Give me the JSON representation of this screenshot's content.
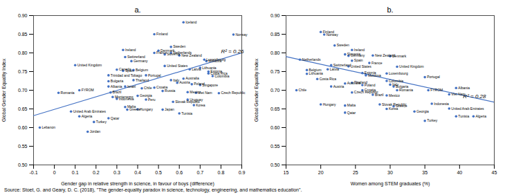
{
  "chart_data": [
    {
      "type": "scatter",
      "title": "a.",
      "xlabel": "Gender gap in relative strength in science, in favour of boys (difference)",
      "ylabel": "Global Gender Equality Index",
      "xlim": [
        -0.1,
        0.9
      ],
      "ylim": [
        0.5,
        0.9
      ],
      "xticks": [
        -0.1,
        0,
        0.1,
        0.2,
        0.3,
        0.4,
        0.5,
        0.6,
        0.7,
        0.8,
        0.9
      ],
      "yticks": [
        {
          "value": 0.5,
          "label": "0.50"
        },
        0.55,
        {
          "value": 0.6,
          "label": "0.60"
        },
        0.65,
        {
          "value": 0.7,
          "label": "0.70"
        },
        0.75,
        {
          "value": 0.8,
          "label": "0.80"
        },
        0.85,
        {
          "value": 0.9,
          "label": "0.90"
        }
      ],
      "color": "#4472C4",
      "marker": "circle",
      "point_labels": [
        "Iceland",
        "Norway",
        "Finland",
        "Ireland",
        "Denmark",
        "Sweden",
        "Netherlands",
        "Switzerland",
        "France",
        "Germany",
        "Slovenia",
        "New Zealand",
        "Luxembourg",
        "Moldova",
        "Latvia",
        "Lithuania",
        "United Kingdom",
        "Canada",
        "Spain",
        "Belgium",
        "United States",
        "Portugal",
        "Estonia",
        "Costa Rica",
        "Colombia",
        "Australia",
        "Trinidad and Tobago",
        "Bulgaria",
        "Thailand",
        "Italy",
        "Austria",
        "Poland",
        "Singapore",
        "Albania",
        "Israel",
        "Chile",
        "Croatia",
        "Russia",
        "Mexico",
        "Viet Nam",
        "Czech Republic",
        "FYROM",
        "Romania",
        "Brazil",
        "Montenegro",
        "Georgia",
        "Indonesia",
        "Peru",
        "Uruguay",
        "Slovak Republic",
        "Korea",
        "Malta",
        "Greece",
        "Hungary",
        "Japan",
        "Tunisia",
        "United Arab Emirates",
        "Algeria",
        "Qatar",
        "Turkey",
        "Lebanon",
        "Jordan"
      ],
      "x": [
        0.62,
        0.86,
        0.48,
        0.33,
        0.5,
        0.56,
        0.56,
        0.34,
        0.48,
        0.37,
        0.53,
        0.6,
        0.72,
        0.73,
        0.65,
        0.7,
        0.1,
        0.3,
        0.33,
        0.38,
        0.53,
        0.44,
        0.74,
        0.74,
        0.76,
        0.62,
        0.26,
        0.26,
        0.38,
        0.56,
        0.59,
        0.66,
        0.7,
        0.26,
        0.34,
        0.42,
        0.48,
        0.52,
        0.64,
        0.68,
        0.79,
        0.12,
        0.02,
        0.27,
        0.28,
        0.4,
        0.3,
        0.44,
        0.64,
        0.57,
        0.67,
        0.34,
        0.35,
        0.4,
        0.52,
        0.6,
        0.08,
        0.12,
        0.26,
        0.19,
        -0.07,
        0.16
      ],
      "values": [
        0.882,
        0.849,
        0.85,
        0.808,
        0.806,
        0.816,
        0.8,
        0.789,
        0.8,
        0.778,
        0.796,
        0.793,
        0.782,
        0.778,
        0.756,
        0.76,
        0.767,
        0.755,
        0.752,
        0.754,
        0.765,
        0.74,
        0.75,
        0.745,
        0.738,
        0.731,
        0.74,
        0.724,
        0.727,
        0.727,
        0.72,
        0.716,
        0.714,
        0.71,
        0.71,
        0.705,
        0.707,
        0.698,
        0.695,
        0.693,
        0.692,
        0.7,
        0.693,
        0.694,
        0.682,
        0.685,
        0.677,
        0.675,
        0.675,
        0.669,
        0.66,
        0.655,
        0.648,
        0.649,
        0.648,
        0.638,
        0.643,
        0.63,
        0.625,
        0.615,
        0.6,
        0.589
      ],
      "trend": {
        "type": "line",
        "color": "#4472C4",
        "x": [
          -0.1,
          0.9
        ],
        "values": [
          0.632,
          0.8
        ]
      },
      "annotations": [
        {
          "text": "R² = 0.26",
          "x": 0.8,
          "y": 0.8
        }
      ]
    },
    {
      "type": "scatter",
      "title": "b.",
      "xlabel": "Women among STEM graduates (%)",
      "ylabel": "Global Gender Equality Index",
      "xlim": [
        15,
        45
      ],
      "ylim": [
        0.5,
        0.9
      ],
      "xticks": [
        15,
        20,
        25,
        30,
        35,
        40,
        45
      ],
      "yticks": [
        {
          "value": 0.5,
          "label": "0.50"
        },
        0.55,
        {
          "value": 0.6,
          "label": "0.60"
        },
        0.65,
        {
          "value": 0.7,
          "label": "0.70"
        },
        0.75,
        {
          "value": 0.8,
          "label": "0.80"
        },
        0.85,
        {
          "value": 0.9,
          "label": "0.90"
        }
      ],
      "color": "#4472C4",
      "marker": "circle",
      "point_labels": [
        "Finland",
        "Norway",
        "Sweden",
        "Ireland",
        "Slovenia",
        "Germany",
        "New Zealand",
        "Denmark",
        "Spain",
        "Netherlands",
        "France",
        "Switzerland",
        "United States",
        "Latvia",
        "Belgium",
        "Lithuania",
        "Estonia",
        "Moldova",
        "Luxembourg",
        "United Kingdom",
        "Portugal",
        "Costa Rica",
        "Australia",
        "Thailand",
        "Poland",
        "Colombia",
        "Austria",
        "Czech Republic",
        "Croatia",
        "Italy",
        "Bulgaria",
        "Romania",
        "FYROM",
        "Albania",
        "Chile",
        "Brazil",
        "Mexico",
        "Greece",
        "Slovak Republic",
        "Hungary",
        "Korea",
        "Malta",
        "Qatar",
        "Georgia",
        "Indonesia",
        "Viet Nam",
        "Turkey",
        "United Arab Emirates",
        "Tunisia",
        "Algeria"
      ],
      "x": [
        20.0,
        20.5,
        22.0,
        24.5,
        23.5,
        24.0,
        27.5,
        30.0,
        24.5,
        17.0,
        27.0,
        21.5,
        24.0,
        21.0,
        18.0,
        18.0,
        26.0,
        26.5,
        29.5,
        31.0,
        35.0,
        19.5,
        23.5,
        24.5,
        26.0,
        29.5,
        21.5,
        24.5,
        26.0,
        30.0,
        30.5,
        31.0,
        35.5,
        39.5,
        16.5,
        27.5,
        29.5,
        30.5,
        28.5,
        20.0,
        29.5,
        23.5,
        23.5,
        33.5,
        36.0,
        38.5,
        35.0,
        38.5,
        39.5,
        42.0
      ],
      "values": [
        0.856,
        0.849,
        0.82,
        0.808,
        0.796,
        0.792,
        0.793,
        0.791,
        0.779,
        0.782,
        0.773,
        0.767,
        0.764,
        0.756,
        0.754,
        0.744,
        0.746,
        0.74,
        0.745,
        0.763,
        0.735,
        0.73,
        0.718,
        0.72,
        0.714,
        0.725,
        0.71,
        0.694,
        0.7,
        0.715,
        0.71,
        0.7,
        0.7,
        0.706,
        0.7,
        0.688,
        0.686,
        0.657,
        0.662,
        0.662,
        0.65,
        0.659,
        0.64,
        0.643,
        0.664,
        0.689,
        0.618,
        0.651,
        0.63,
        0.63
      ],
      "trend": {
        "type": "line",
        "color": "#4472C4",
        "x": [
          15,
          45
        ],
        "values": [
          0.79,
          0.668
        ]
      },
      "annotations": [
        {
          "text": "R² = 0.28",
          "x": 40.5,
          "y": 0.678
        }
      ]
    }
  ],
  "caption": "Source: Stoet, G. and Geary, D. C. (2018), \"The gender-equality paradox in science, technology, engineering, and mathematics education\"."
}
